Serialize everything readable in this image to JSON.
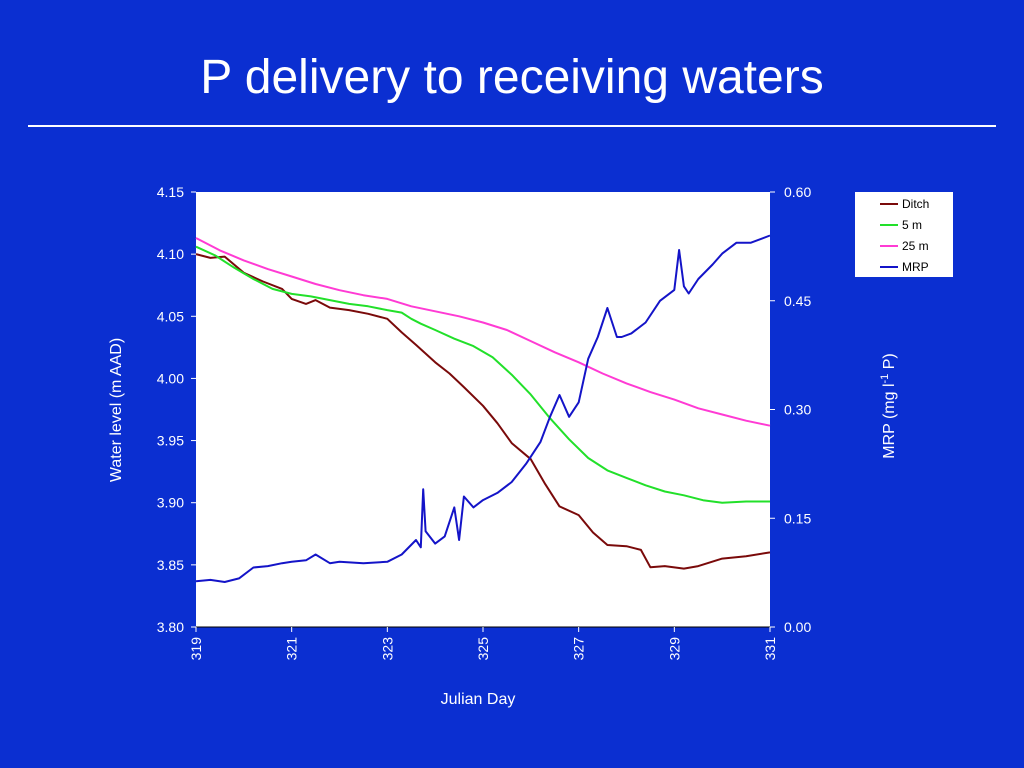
{
  "slide": {
    "title": "P delivery to receiving waters"
  },
  "colors": {
    "background": "#0b2fd1",
    "plot_bg": "#ffffff",
    "text": "#ffffff"
  },
  "chart_data": {
    "type": "line",
    "xlabel": "Julian Day",
    "ylabel_left": "Water level (m AAD)",
    "ylabel_right": "MRP (mg l",
    "ylabel_right_sup": "-1",
    "ylabel_right_tail": " P)",
    "xlim": [
      319,
      331
    ],
    "ylim_left": [
      3.8,
      4.15
    ],
    "ylim_right": [
      0.0,
      0.6
    ],
    "x_ticks": [
      "319",
      "321",
      "323",
      "325",
      "327",
      "329",
      "331"
    ],
    "y_left_ticks": [
      "3.80",
      "3.85",
      "3.90",
      "3.95",
      "4.00",
      "4.05",
      "4.10",
      "4.15"
    ],
    "y_right_ticks": [
      "0.00",
      "0.15",
      "0.30",
      "0.45",
      "0.60"
    ],
    "legend_position": "top-right, outside plot",
    "grid": false,
    "series": [
      {
        "name": "Ditch",
        "axis": "left",
        "color": "#7a0a0a",
        "x": [
          319.0,
          319.3,
          319.6,
          320.0,
          320.4,
          320.8,
          321.0,
          321.3,
          321.5,
          321.8,
          322.2,
          322.6,
          323.0,
          323.3,
          323.6,
          324.0,
          324.3,
          324.6,
          325.0,
          325.3,
          325.6,
          326.0,
          326.3,
          326.6,
          327.0,
          327.3,
          327.6,
          328.0,
          328.3,
          328.5,
          328.8,
          329.2,
          329.5,
          330.0,
          330.5,
          331.0
        ],
        "y": [
          4.1,
          4.097,
          4.098,
          4.085,
          4.078,
          4.072,
          4.064,
          4.06,
          4.063,
          4.057,
          4.055,
          4.052,
          4.048,
          4.037,
          4.027,
          4.013,
          4.004,
          3.993,
          3.978,
          3.964,
          3.948,
          3.935,
          3.915,
          3.897,
          3.89,
          3.876,
          3.866,
          3.865,
          3.862,
          3.848,
          3.849,
          3.847,
          3.849,
          3.855,
          3.857,
          3.86
        ]
      },
      {
        "name": "5 m",
        "axis": "left",
        "color": "#22e02a",
        "x": [
          319.0,
          319.4,
          319.8,
          320.2,
          320.6,
          321.0,
          321.4,
          321.8,
          322.2,
          322.6,
          323.0,
          323.3,
          323.5,
          323.7,
          324.0,
          324.4,
          324.8,
          325.2,
          325.6,
          326.0,
          326.4,
          326.8,
          327.2,
          327.6,
          328.0,
          328.4,
          328.8,
          329.2,
          329.6,
          330.0,
          330.5,
          331.0
        ],
        "y": [
          4.106,
          4.099,
          4.089,
          4.08,
          4.072,
          4.068,
          4.066,
          4.063,
          4.06,
          4.058,
          4.055,
          4.053,
          4.048,
          4.044,
          4.039,
          4.032,
          4.026,
          4.017,
          4.003,
          3.987,
          3.968,
          3.951,
          3.936,
          3.926,
          3.92,
          3.914,
          3.909,
          3.906,
          3.902,
          3.9,
          3.901,
          3.901
        ]
      },
      {
        "name": "25 m",
        "axis": "left",
        "color": "#ff3bd4",
        "x": [
          319.0,
          319.5,
          320.0,
          320.5,
          321.0,
          321.5,
          322.0,
          322.5,
          323.0,
          323.5,
          324.0,
          324.5,
          325.0,
          325.5,
          326.0,
          326.5,
          327.0,
          327.5,
          328.0,
          328.5,
          329.0,
          329.5,
          330.0,
          330.5,
          331.0
        ],
        "y": [
          4.113,
          4.103,
          4.095,
          4.088,
          4.082,
          4.076,
          4.071,
          4.067,
          4.064,
          4.058,
          4.054,
          4.05,
          4.045,
          4.039,
          4.03,
          4.021,
          4.013,
          4.004,
          3.996,
          3.989,
          3.983,
          3.976,
          3.971,
          3.966,
          3.962
        ]
      },
      {
        "name": "MRP",
        "axis": "right",
        "color": "#1414c8",
        "x": [
          319.0,
          319.3,
          319.6,
          319.9,
          320.2,
          320.5,
          320.8,
          321.0,
          321.3,
          321.5,
          321.8,
          322.0,
          322.5,
          323.0,
          323.3,
          323.6,
          323.7,
          323.75,
          323.8,
          324.0,
          324.2,
          324.4,
          324.5,
          324.6,
          324.8,
          325.0,
          325.3,
          325.6,
          325.9,
          326.2,
          326.4,
          326.6,
          326.8,
          327.0,
          327.2,
          327.4,
          327.6,
          327.8,
          327.9,
          328.1,
          328.4,
          328.7,
          329.0,
          329.1,
          329.2,
          329.3,
          329.5,
          329.8,
          330.0,
          330.3,
          330.6,
          331.0
        ],
        "y": [
          0.063,
          0.065,
          0.062,
          0.067,
          0.082,
          0.084,
          0.088,
          0.09,
          0.092,
          0.1,
          0.088,
          0.09,
          0.088,
          0.09,
          0.1,
          0.12,
          0.11,
          0.19,
          0.132,
          0.115,
          0.125,
          0.165,
          0.12,
          0.18,
          0.165,
          0.175,
          0.185,
          0.2,
          0.225,
          0.255,
          0.29,
          0.32,
          0.29,
          0.31,
          0.37,
          0.4,
          0.44,
          0.4,
          0.4,
          0.405,
          0.42,
          0.45,
          0.465,
          0.52,
          0.47,
          0.46,
          0.48,
          0.5,
          0.515,
          0.53,
          0.53,
          0.54
        ]
      }
    ]
  }
}
